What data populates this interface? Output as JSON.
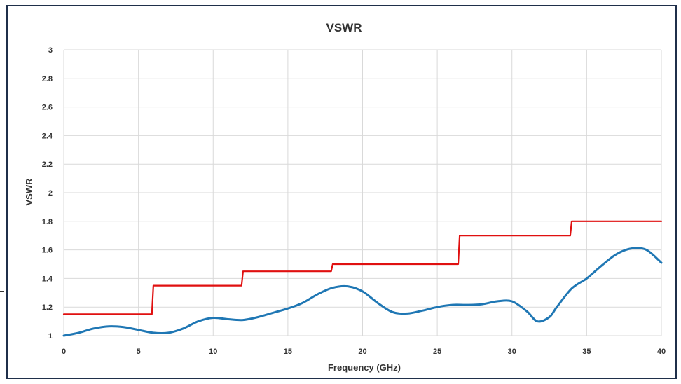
{
  "chart_data": {
    "type": "line",
    "title": "VSWR",
    "xlabel": "Frequency (GHz)",
    "ylabel": "VSWR",
    "xlim": [
      0,
      40
    ],
    "ylim": [
      1,
      3
    ],
    "x_ticks": [
      "0",
      "5",
      "10",
      "15",
      "20",
      "25",
      "30",
      "35",
      "40"
    ],
    "y_ticks": [
      "1",
      "1.2",
      "1.4",
      "1.6",
      "1.8",
      "2",
      "2.2",
      "2.4",
      "2.6",
      "2.8",
      "3"
    ],
    "grid": true,
    "series": [
      {
        "color": "#e01010",
        "style": "step",
        "points": [
          [
            0,
            1.15
          ],
          [
            5.9,
            1.15
          ],
          [
            6.0,
            1.35
          ],
          [
            11.9,
            1.35
          ],
          [
            12.0,
            1.45
          ],
          [
            17.9,
            1.45
          ],
          [
            18.0,
            1.5
          ],
          [
            26.4,
            1.5
          ],
          [
            26.5,
            1.7
          ],
          [
            33.9,
            1.7
          ],
          [
            34.0,
            1.8
          ],
          [
            40,
            1.8
          ]
        ]
      },
      {
        "color": "#1f77b4",
        "style": "smooth",
        "points": [
          [
            0,
            1.0
          ],
          [
            1,
            1.02
          ],
          [
            2,
            1.05
          ],
          [
            3,
            1.065
          ],
          [
            4,
            1.06
          ],
          [
            5,
            1.04
          ],
          [
            6,
            1.02
          ],
          [
            7,
            1.02
          ],
          [
            8,
            1.05
          ],
          [
            9,
            1.1
          ],
          [
            10,
            1.125
          ],
          [
            11,
            1.115
          ],
          [
            12,
            1.11
          ],
          [
            13,
            1.13
          ],
          [
            14,
            1.16
          ],
          [
            15,
            1.19
          ],
          [
            16,
            1.23
          ],
          [
            17,
            1.29
          ],
          [
            18,
            1.335
          ],
          [
            19,
            1.345
          ],
          [
            20,
            1.31
          ],
          [
            21,
            1.23
          ],
          [
            22,
            1.165
          ],
          [
            23,
            1.155
          ],
          [
            24,
            1.175
          ],
          [
            25,
            1.2
          ],
          [
            26,
            1.215
          ],
          [
            27,
            1.215
          ],
          [
            28,
            1.22
          ],
          [
            29,
            1.24
          ],
          [
            30,
            1.24
          ],
          [
            31,
            1.17
          ],
          [
            31.7,
            1.1
          ],
          [
            32.5,
            1.13
          ],
          [
            33,
            1.2
          ],
          [
            34,
            1.33
          ],
          [
            35,
            1.4
          ],
          [
            36,
            1.49
          ],
          [
            37,
            1.57
          ],
          [
            38,
            1.61
          ],
          [
            39,
            1.6
          ],
          [
            40,
            1.51
          ]
        ]
      }
    ]
  }
}
